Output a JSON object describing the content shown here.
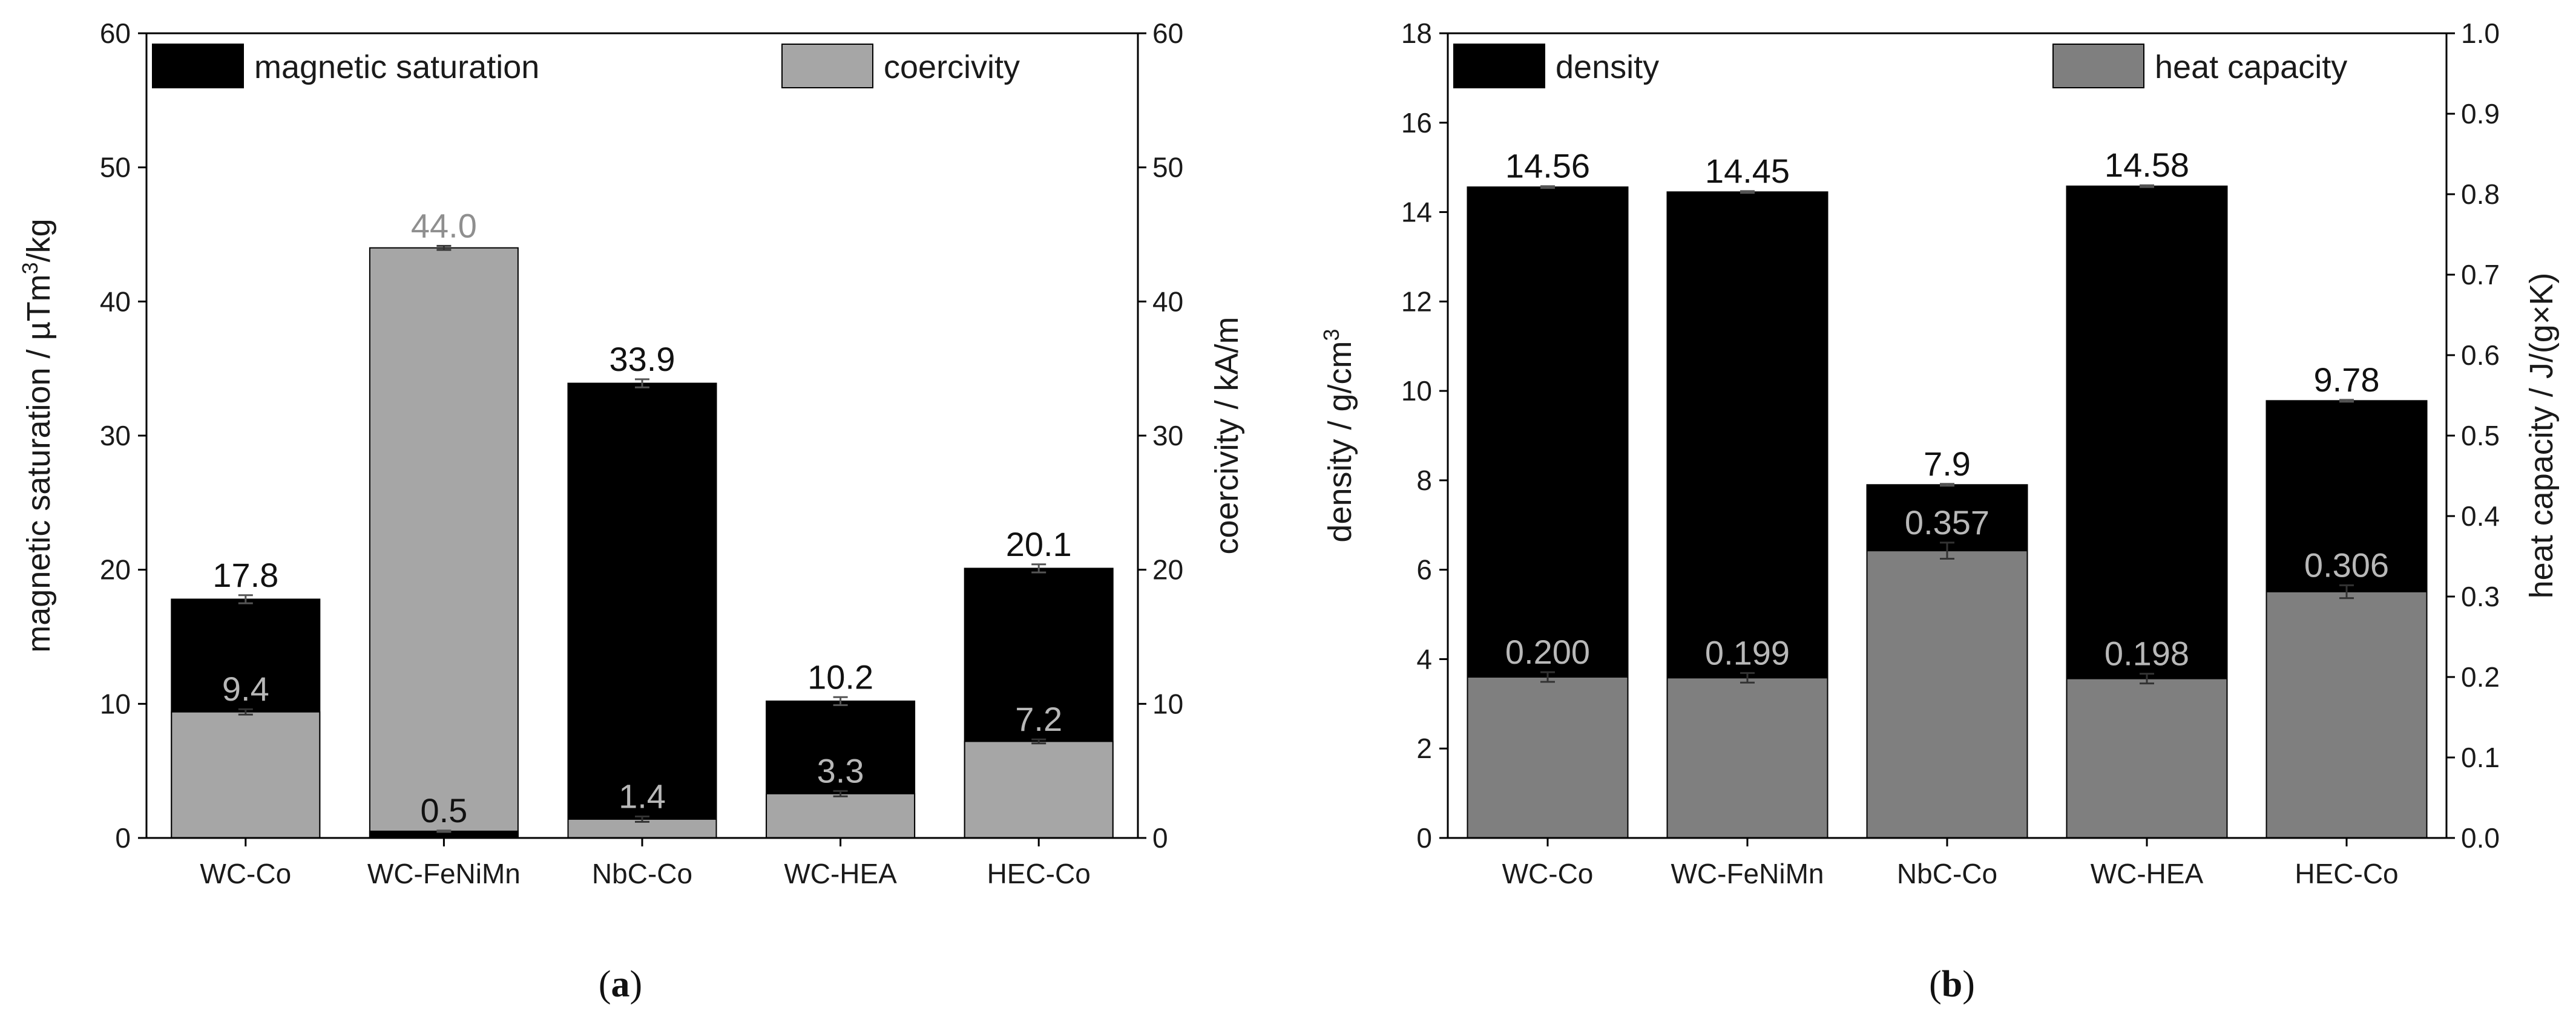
{
  "colors": {
    "black": "#000000",
    "coercivity_grey": "#a6a6a6",
    "heat_capacity_grey": "#7f7f7f",
    "label_grey_light": "#b8b8b8",
    "label_grey_dark": "#8f8f8f"
  },
  "chart_data": [
    {
      "id": "a",
      "type": "bar",
      "stacking": "overlay",
      "caption": {
        "open": "(",
        "letter": "a",
        "close": ")"
      },
      "categories": [
        "WC-Co",
        "WC-FeNiMn",
        "NbC-Co",
        "WC-HEA",
        "HEC-Co"
      ],
      "series": [
        {
          "name": "magnetic saturation",
          "axis": "left",
          "color": "#000000",
          "values": [
            17.8,
            0.5,
            33.9,
            10.2,
            20.1
          ],
          "labels": [
            "17.8",
            "0.5",
            "33.9",
            "10.2",
            "20.1"
          ],
          "errors": [
            0.3,
            0.05,
            0.3,
            0.3,
            0.3
          ]
        },
        {
          "name": "coercivity",
          "axis": "right",
          "color": "#a6a6a6",
          "values": [
            9.4,
            44.0,
            1.4,
            3.3,
            7.2
          ],
          "labels": [
            "9.4",
            "44.0",
            "1.4",
            "3.3",
            "7.2"
          ],
          "errors": [
            0.2,
            0.15,
            0.2,
            0.2,
            0.15
          ]
        }
      ],
      "left_axis": {
        "label_pre": "magnetic saturation / µTm",
        "label_sup": "3",
        "label_post": "/kg",
        "ylim": [
          0,
          60
        ],
        "ticks": [
          "0",
          "10",
          "20",
          "30",
          "40",
          "50",
          "60"
        ]
      },
      "right_axis": {
        "label": "coercivity / kA/m",
        "ylim": [
          0,
          60
        ],
        "ticks": [
          "0",
          "10",
          "20",
          "30",
          "40",
          "50",
          "60"
        ]
      },
      "legend": [
        {
          "label": "magnetic saturation",
          "color": "#000000",
          "position": "top-left"
        },
        {
          "label": "coercivity",
          "color": "#a6a6a6",
          "position": "top-right"
        }
      ]
    },
    {
      "id": "b",
      "type": "bar",
      "stacking": "overlay",
      "caption": {
        "open": "(",
        "letter": "b",
        "close": ")"
      },
      "categories": [
        "WC-Co",
        "WC-FeNiMn",
        "NbC-Co",
        "WC-HEA",
        "HEC-Co"
      ],
      "series": [
        {
          "name": "density",
          "axis": "left",
          "color": "#000000",
          "values": [
            14.56,
            14.45,
            7.9,
            14.58,
            9.78
          ],
          "labels": [
            "14.56",
            "14.45",
            "7.9",
            "14.58",
            "9.78"
          ],
          "errors": [
            0.02,
            0.02,
            0.02,
            0.02,
            0.02
          ]
        },
        {
          "name": "heat capacity",
          "axis": "right",
          "color": "#7f7f7f",
          "values": [
            0.2,
            0.199,
            0.357,
            0.198,
            0.306
          ],
          "labels": [
            "0.200",
            "0.199",
            "0.357",
            "0.198",
            "0.306"
          ],
          "errors": [
            0.006,
            0.006,
            0.01,
            0.006,
            0.008
          ]
        }
      ],
      "left_axis": {
        "label_pre": "density / g/cm",
        "label_sup": "3",
        "label_post": "",
        "ylim": [
          0,
          18
        ],
        "ticks": [
          "0",
          "2",
          "4",
          "6",
          "8",
          "10",
          "12",
          "14",
          "16",
          "18"
        ]
      },
      "right_axis": {
        "label": "heat capacity / J/(g×K)",
        "ylim": [
          0,
          1.0
        ],
        "ticks": [
          "0.0",
          "0.1",
          "0.2",
          "0.3",
          "0.4",
          "0.5",
          "0.6",
          "0.7",
          "0.8",
          "0.9",
          "1.0"
        ]
      },
      "legend": [
        {
          "label": "density",
          "color": "#000000",
          "position": "top-left"
        },
        {
          "label": "heat capacity",
          "color": "#7f7f7f",
          "position": "top-right"
        }
      ]
    }
  ]
}
